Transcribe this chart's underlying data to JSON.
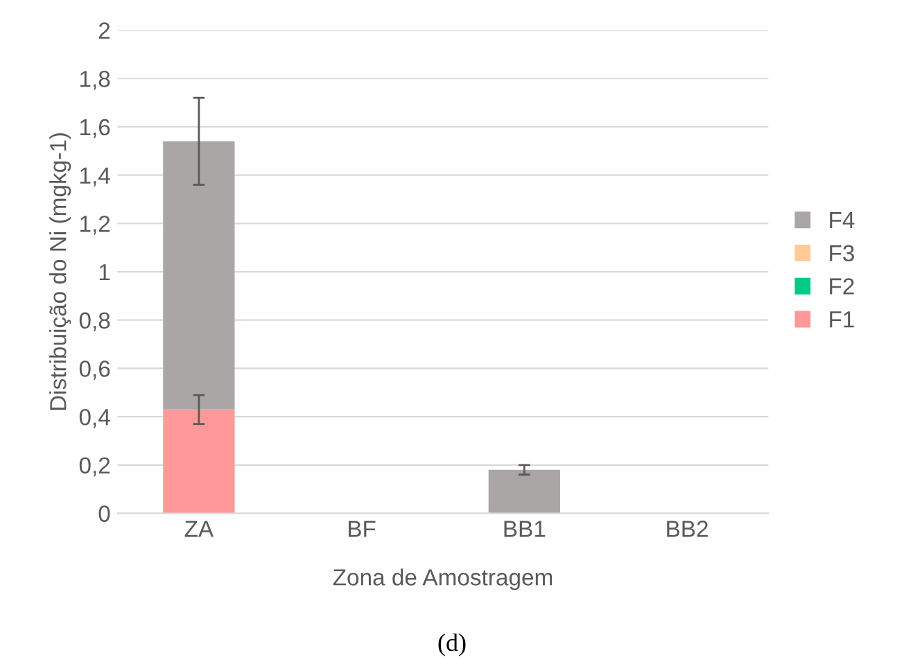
{
  "chart_data": {
    "type": "bar",
    "stacked": true,
    "xlabel": "Zona de Amostragem",
    "ylabel": "Distribuição do Ni (mgkg-1)",
    "categories": [
      "ZA",
      "BF",
      "BB1",
      "BB2"
    ],
    "series": [
      {
        "name": "F1",
        "color": "#ff9999",
        "values": [
          0.43,
          0,
          0,
          0
        ],
        "errors": [
          0.06,
          null,
          null,
          null
        ]
      },
      {
        "name": "F2",
        "color": "#00cc88",
        "values": [
          0,
          0,
          0,
          0
        ]
      },
      {
        "name": "F3",
        "color": "#ffcc99",
        "values": [
          0,
          0,
          0,
          0
        ]
      },
      {
        "name": "F4",
        "color": "#aaa6a6",
        "values": [
          1.11,
          0,
          0.18,
          0
        ],
        "errors": [
          0.18,
          null,
          0.02,
          null
        ]
      }
    ],
    "ylim": [
      0,
      2
    ],
    "yticks": [
      0,
      {
        "value": 0.2,
        "label": "0,2"
      },
      {
        "value": 0.4,
        "label": "0,4"
      },
      {
        "value": 0.6,
        "label": "0,6"
      },
      {
        "value": 0.8,
        "label": "0,8"
      },
      1,
      {
        "value": 1.2,
        "label": "1,2"
      },
      {
        "value": 1.4,
        "label": "1,4"
      },
      {
        "value": 1.6,
        "label": "1,6"
      },
      {
        "value": 1.8,
        "label": "1,8"
      },
      2
    ],
    "grid": "y",
    "legend": "right",
    "annotations": [
      "(d)"
    ]
  }
}
